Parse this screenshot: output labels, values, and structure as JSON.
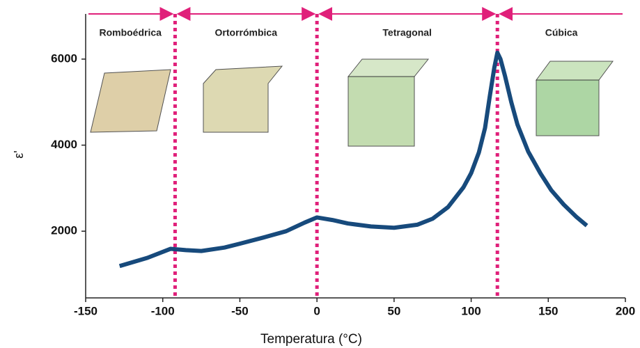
{
  "chart_data": {
    "type": "line",
    "x_label": "Temperatura (°C)",
    "y_label": "ε'",
    "xlim": [
      -150,
      200
    ],
    "xticks": [
      -150,
      -100,
      -50,
      0,
      50,
      100,
      150,
      200
    ],
    "ylim": [
      450,
      7050
    ],
    "yticks": [
      2000,
      4000,
      6000
    ],
    "x": [
      -128,
      -110,
      -95,
      -85,
      -75,
      -60,
      -50,
      -35,
      -20,
      -8,
      0,
      10,
      20,
      35,
      50,
      65,
      75,
      85,
      95,
      100,
      105,
      109,
      112,
      115,
      117,
      119,
      122,
      126,
      130,
      137,
      145,
      152,
      160,
      168,
      175
    ],
    "series": [
      {
        "name": "ε'",
        "color": "#174a7c",
        "values": [
          1190,
          1380,
          1590,
          1560,
          1540,
          1620,
          1710,
          1850,
          2000,
          2200,
          2320,
          2260,
          2180,
          2110,
          2080,
          2150,
          2290,
          2560,
          3020,
          3350,
          3830,
          4400,
          5120,
          5800,
          6150,
          6000,
          5600,
          5000,
          4480,
          3850,
          3340,
          2950,
          2620,
          2340,
          2130
        ]
      }
    ],
    "transitions": [
      -92,
      0,
      117
    ],
    "transition_color": "#e0207a",
    "phases": [
      "Romboédrica",
      "Ortorrómbica",
      "Tetragonal",
      "Cúbica"
    ]
  }
}
